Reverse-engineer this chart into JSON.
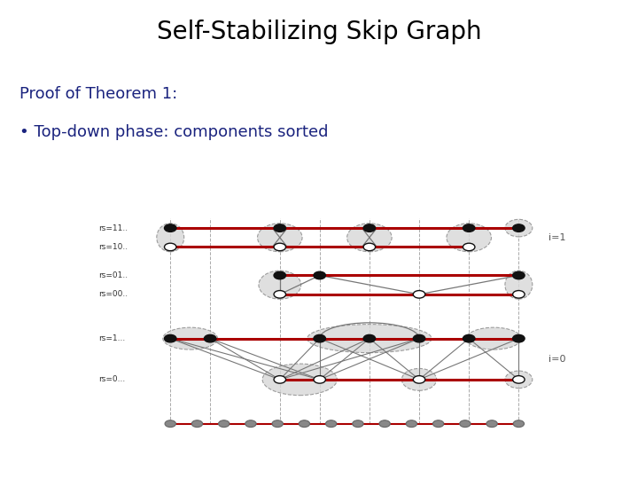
{
  "title": "Self-Stabilizing Skip Graph",
  "title_fontsize": 20,
  "title_color": "#000000",
  "subtitle1": "Proof of Theorem 1:",
  "subtitle2": "• Top-down phase: components sorted",
  "subtitle_color": "#1a237e",
  "subtitle1_fontsize": 13,
  "subtitle2_fontsize": 13,
  "bg_color": "#ffffff",
  "red_color": "#aa0000",
  "gray_node_color": "#888888",
  "black_node_color": "#111111",
  "white_node_color": "#ffffff",
  "ellipse_fill": "#d8d8d8",
  "ellipse_edge": "#888888",
  "label_color": "#333333",
  "label_fontsize": 6.5,
  "ilabel_fontsize": 8,
  "ilabel_color": "#555555"
}
